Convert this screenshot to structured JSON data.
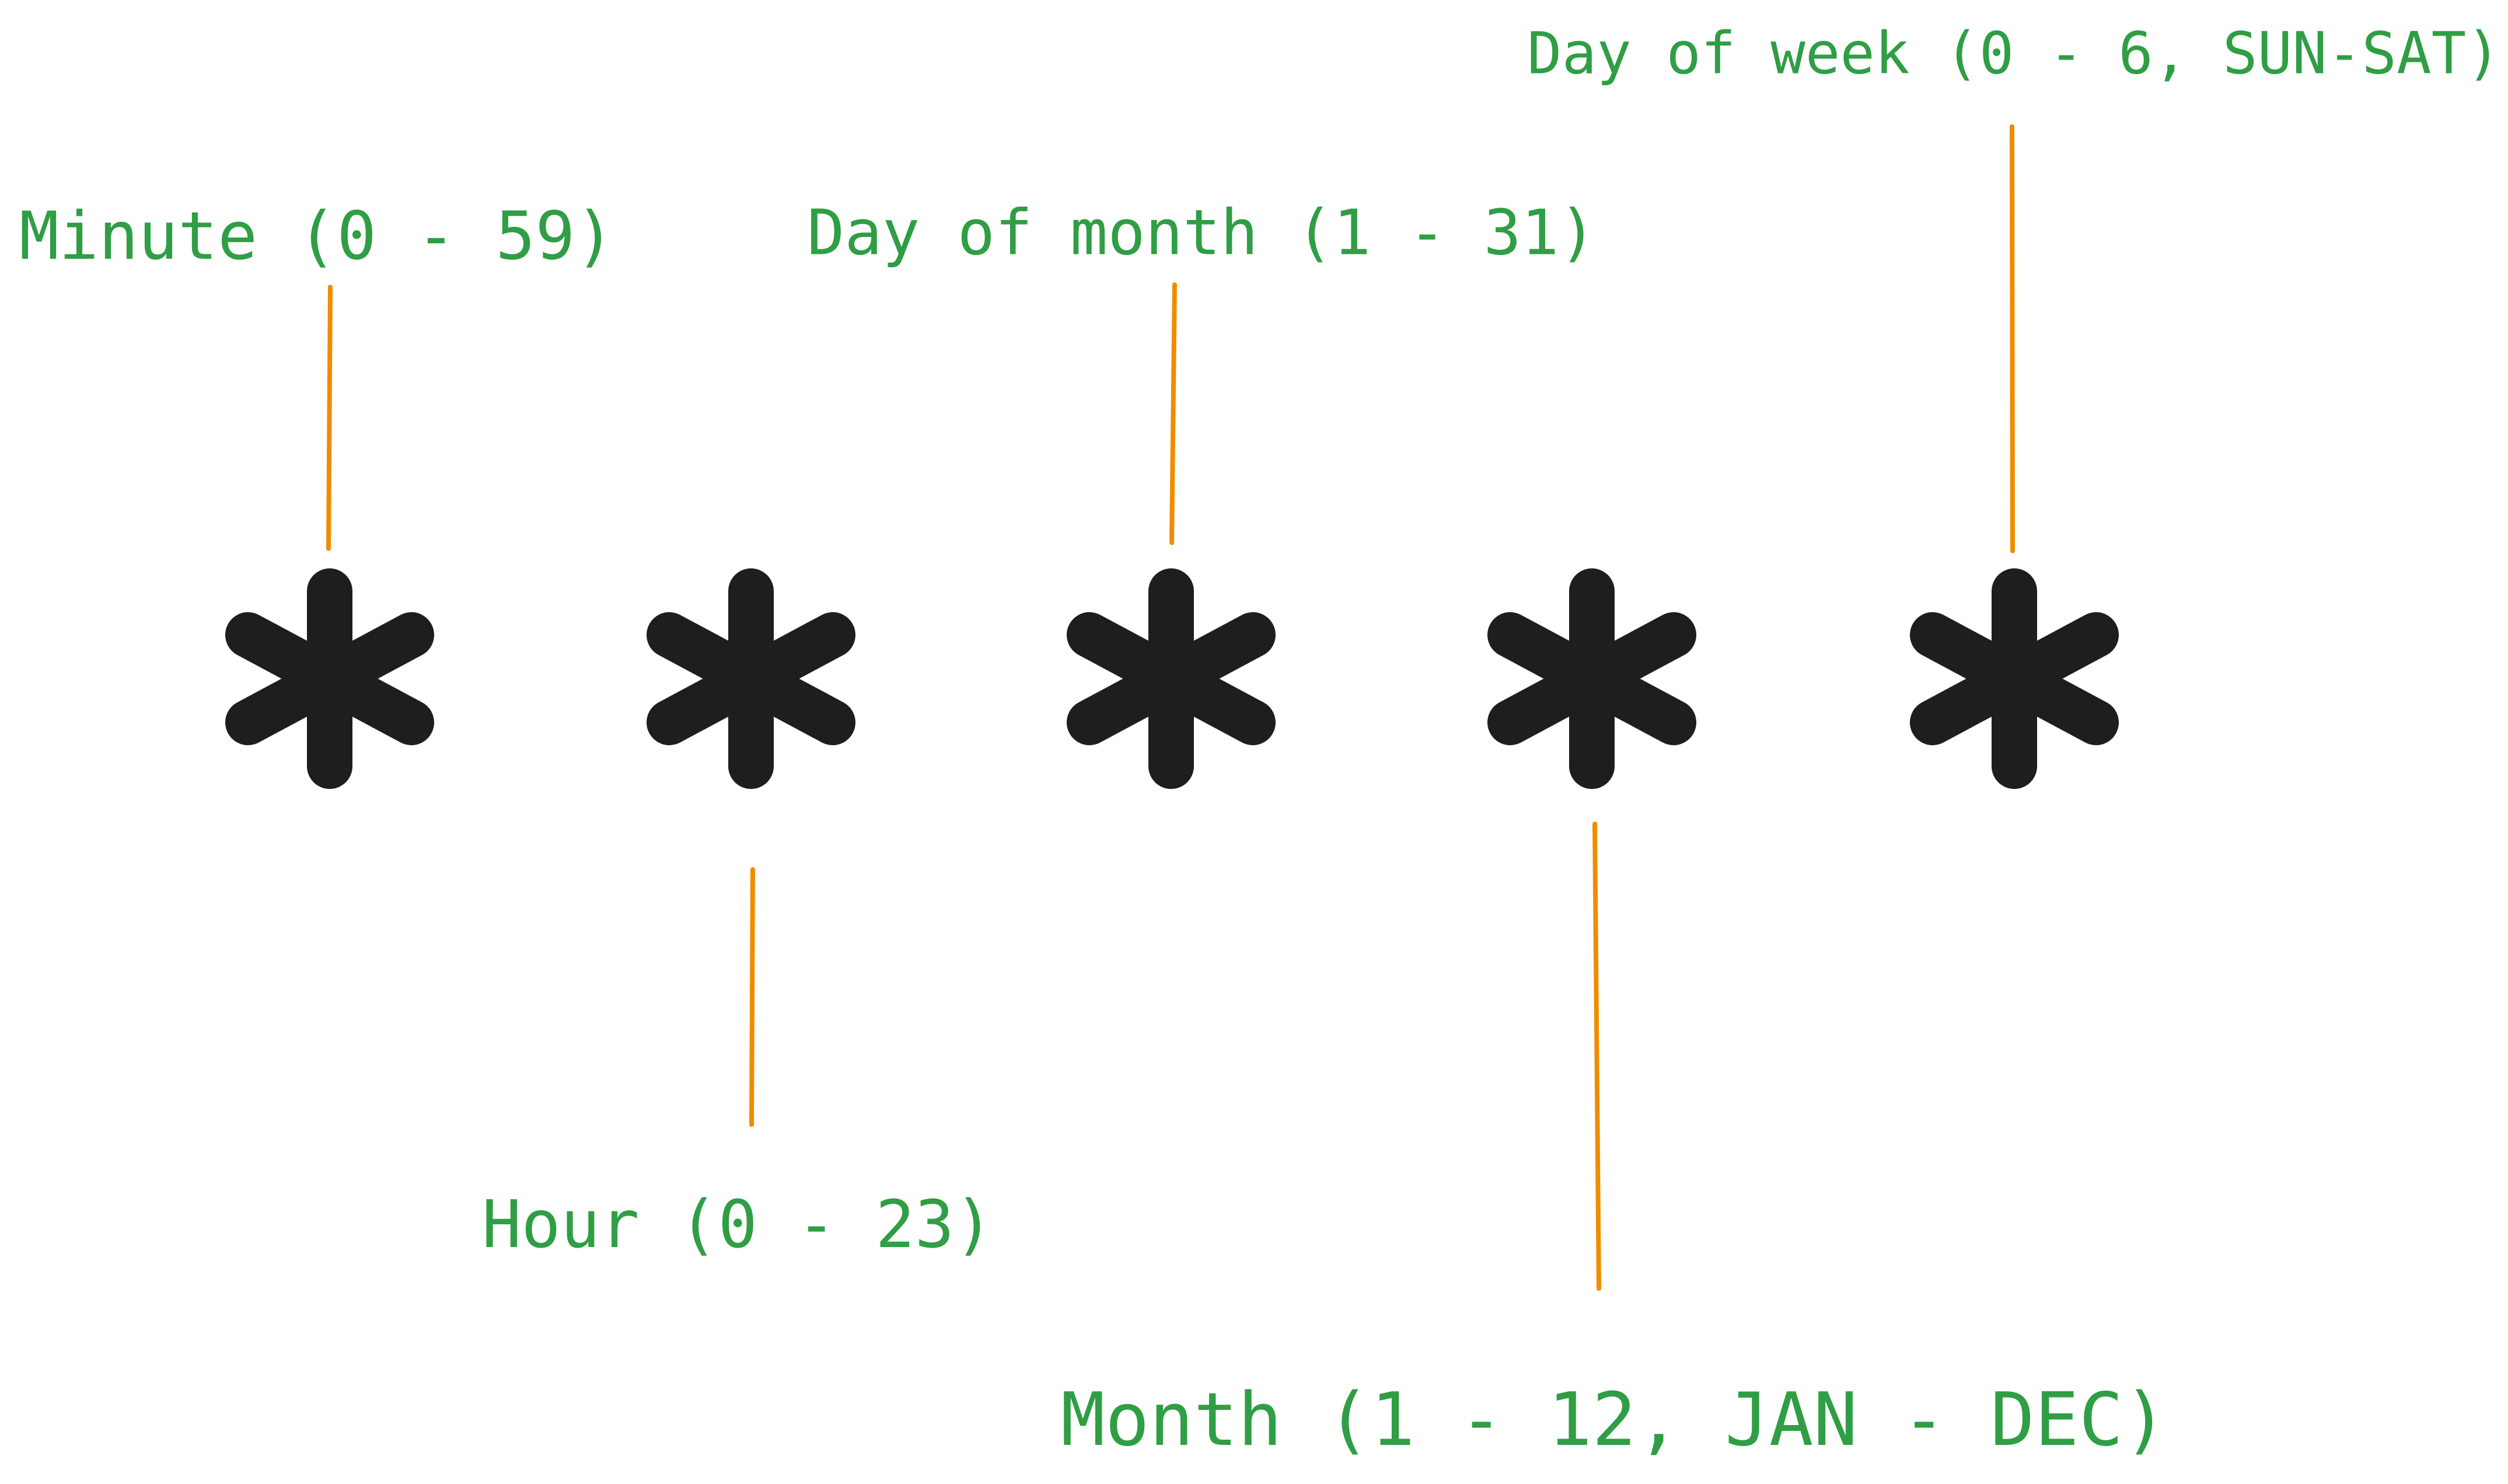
{
  "labels": {
    "minute": "Minute (0 - 59)",
    "hour": "Hour (0 - 23)",
    "day_of_month": "Day of month (1 - 31)",
    "month": "Month (1 - 12, JAN - DEC)",
    "day_of_week": "Day of week (0 - 6, SUN-SAT)"
  },
  "fields": [
    "*",
    "*",
    "*",
    "*",
    "*"
  ],
  "colors": {
    "label": "#2f9e44",
    "connector": "#f08c00",
    "asterisk": "#1e1e1e"
  }
}
